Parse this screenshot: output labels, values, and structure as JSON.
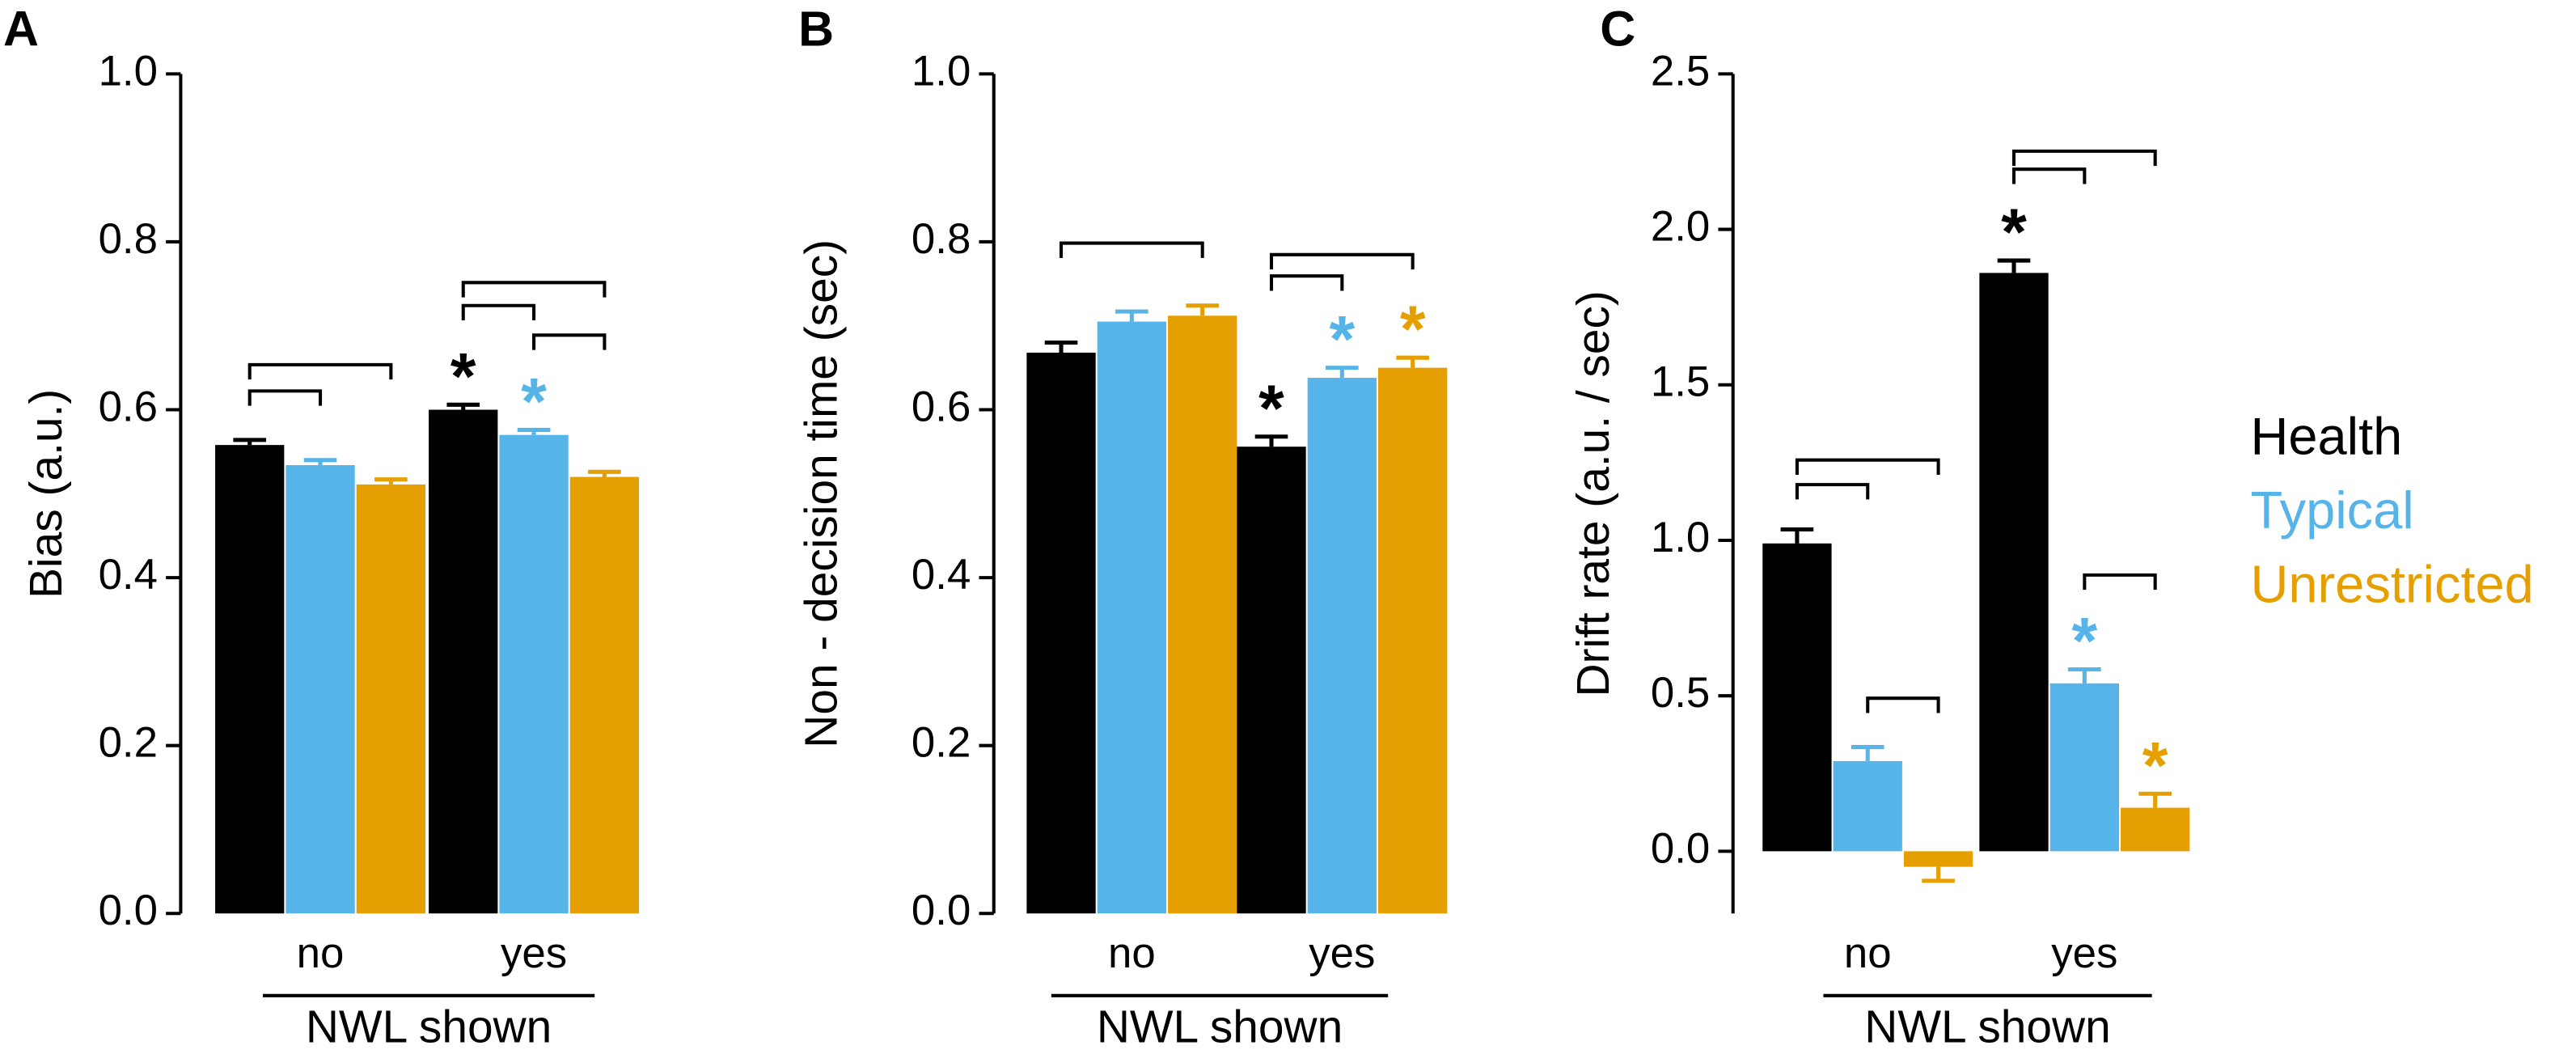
{
  "chart_data": [
    {
      "type": "bar",
      "panel": "A",
      "y_label": "Bias (a.u.)",
      "x_label": "NWL shown",
      "categories": [
        "no",
        "yes"
      ],
      "ylim": [
        0,
        1
      ],
      "yticks": [
        {
          "value": 0,
          "label": "0.0"
        },
        0.2,
        0.4,
        0.6,
        0.8,
        {
          "value": 1,
          "label": "1.0"
        }
      ],
      "series": [
        {
          "color": "#000000",
          "values": [
            0.558,
            0.6
          ],
          "errors": [
            0.006,
            0.006
          ],
          "markers": [
            null,
            "*"
          ]
        },
        {
          "color": "#56b4e9",
          "values": [
            0.534,
            0.57
          ],
          "errors": [
            0.006,
            0.006
          ],
          "markers": [
            null,
            "*"
          ]
        },
        {
          "color": "#e69f00",
          "values": [
            0.511,
            0.52
          ],
          "errors": [
            0.006,
            0.006
          ],
          "markers": [
            null,
            null
          ]
        }
      ]
    },
    {
      "type": "bar",
      "panel": "B",
      "y_label": "Non - decision time (sec)",
      "x_label": "NWL shown",
      "categories": [
        "no",
        "yes"
      ],
      "ylim": [
        0,
        1
      ],
      "yticks": [
        {
          "value": 0,
          "label": "0.0"
        },
        0.2,
        0.4,
        0.6,
        0.8,
        {
          "value": 1,
          "label": "1.0"
        }
      ],
      "series": [
        {
          "color": "#000000",
          "values": [
            0.668,
            0.556
          ],
          "errors": [
            0.012,
            0.012
          ],
          "markers": [
            null,
            "*"
          ]
        },
        {
          "color": "#56b4e9",
          "values": [
            0.705,
            0.638
          ],
          "errors": [
            0.012,
            0.012
          ],
          "markers": [
            null,
            "*"
          ]
        },
        {
          "color": "#e69f00",
          "values": [
            0.712,
            0.65
          ],
          "errors": [
            0.012,
            0.012
          ],
          "markers": [
            null,
            "*"
          ]
        }
      ]
    },
    {
      "type": "bar",
      "panel": "C",
      "y_label": "Drift rate (a.u. / sec)",
      "x_label": "NWL shown",
      "categories": [
        "no",
        "yes"
      ],
      "ylim": [
        -0.2,
        2.5
      ],
      "yticks": [
        {
          "value": 0,
          "label": "0.0"
        },
        0.5,
        {
          "value": 1,
          "label": "1.0"
        },
        1.5,
        {
          "value": 2,
          "label": "2.0"
        },
        2.5
      ],
      "series": [
        {
          "name": "Health",
          "color": "#000000",
          "values": [
            0.99,
            1.86
          ],
          "errors": [
            0.045,
            0.04
          ],
          "markers": [
            null,
            "*"
          ]
        },
        {
          "name": "Typical",
          "color": "#56b4e9",
          "values": [
            0.29,
            0.54
          ],
          "errors": [
            0.045,
            0.045
          ],
          "markers": [
            null,
            "*"
          ]
        },
        {
          "name": "Unrestricted",
          "color": "#e69f00",
          "values": [
            -0.05,
            0.14
          ],
          "errors": [
            0.045,
            0.045
          ],
          "markers": [
            null,
            "*"
          ]
        }
      ]
    }
  ]
}
